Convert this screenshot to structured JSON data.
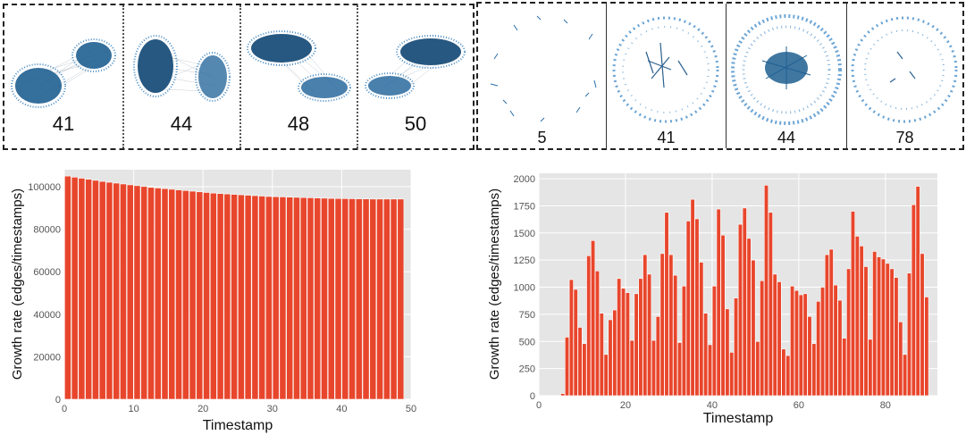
{
  "left_snapshots": [
    {
      "label": "41"
    },
    {
      "label": "44"
    },
    {
      "label": "48"
    },
    {
      "label": "50"
    }
  ],
  "right_snapshots": [
    {
      "label": "5"
    },
    {
      "label": "41"
    },
    {
      "label": "44"
    },
    {
      "label": "78"
    }
  ],
  "colors": {
    "bar": "#e8462c",
    "plot_bg": "#e5e5e5",
    "node": "#2c6fa8"
  },
  "chart_data": [
    {
      "type": "bar",
      "xlabel": "Timestamp",
      "ylabel": "Growth rate (edges/timestamps)",
      "xlim": [
        0,
        50
      ],
      "ylim": [
        0,
        108000
      ],
      "xticks": [
        0,
        10,
        20,
        30,
        40,
        50
      ],
      "yticks": [
        0,
        20000,
        40000,
        60000,
        80000,
        100000
      ],
      "x": [
        0,
        1,
        2,
        3,
        4,
        5,
        6,
        7,
        8,
        9,
        10,
        11,
        12,
        13,
        14,
        15,
        16,
        17,
        18,
        19,
        20,
        21,
        22,
        23,
        24,
        25,
        26,
        27,
        28,
        29,
        30,
        31,
        32,
        33,
        34,
        35,
        36,
        37,
        38,
        39,
        40,
        41,
        42,
        43,
        44,
        45,
        46,
        47,
        48
      ],
      "values": [
        105000,
        104500,
        104000,
        103500,
        103000,
        102500,
        102100,
        101700,
        101300,
        100900,
        100500,
        100100,
        99700,
        99400,
        99100,
        98800,
        98500,
        98200,
        97900,
        97600,
        97300,
        97000,
        96800,
        96600,
        96400,
        96200,
        96000,
        95800,
        95600,
        95400,
        95300,
        95200,
        95100,
        95000,
        94900,
        94800,
        94700,
        94600,
        94500,
        94450,
        94400,
        94350,
        94300,
        94250,
        94200,
        94200,
        94200,
        94200,
        94200
      ],
      "grid": true
    },
    {
      "type": "bar",
      "xlabel": "Timestamp",
      "ylabel": "Growth rate (edges/timestamps)",
      "xlim": [
        0,
        92
      ],
      "ylim": [
        0,
        2050
      ],
      "xticks": [
        0,
        20,
        40,
        60,
        80
      ],
      "yticks": [
        0,
        250,
        500,
        750,
        1000,
        1250,
        1500,
        1750,
        2000
      ],
      "x": [
        0,
        1,
        2,
        3,
        4,
        5,
        6,
        7,
        8,
        9,
        10,
        11,
        12,
        13,
        14,
        15,
        16,
        17,
        18,
        19,
        20,
        21,
        22,
        23,
        24,
        25,
        26,
        27,
        28,
        29,
        30,
        31,
        32,
        33,
        34,
        35,
        36,
        37,
        38,
        39,
        40,
        41,
        42,
        43,
        44,
        45,
        46,
        47,
        48,
        49,
        50,
        51,
        52,
        53,
        54,
        55,
        56,
        57,
        58,
        59,
        60,
        61,
        62,
        63,
        64,
        65,
        66,
        67,
        68,
        69,
        70,
        71,
        72,
        73,
        74,
        75,
        76,
        77,
        78,
        79,
        80,
        81,
        82,
        83,
        84,
        85,
        86,
        87,
        88,
        89
      ],
      "values": [
        0,
        0,
        0,
        0,
        0,
        20,
        540,
        1070,
        980,
        630,
        480,
        1290,
        1430,
        1150,
        760,
        380,
        700,
        790,
        1080,
        990,
        950,
        510,
        940,
        1080,
        1300,
        1120,
        510,
        730,
        1310,
        1690,
        1300,
        1110,
        490,
        1010,
        1610,
        1810,
        1630,
        1230,
        760,
        470,
        1010,
        1720,
        1480,
        800,
        400,
        900,
        1580,
        1730,
        1450,
        1250,
        500,
        1060,
        1940,
        1690,
        1120,
        1050,
        430,
        370,
        1010,
        970,
        930,
        940,
        730,
        480,
        870,
        1000,
        1300,
        1350,
        1020,
        880,
        530,
        1170,
        1700,
        1470,
        1380,
        1190,
        520,
        1330,
        1280,
        1260,
        1220,
        1170,
        1090,
        680,
        380,
        1130,
        1760,
        1930,
        1310,
        910
      ],
      "grid": true
    }
  ]
}
